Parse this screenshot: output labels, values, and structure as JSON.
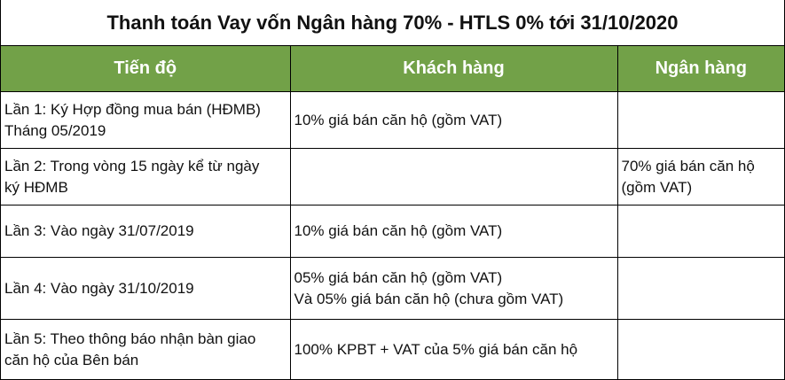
{
  "title": "Thanh toán Vay vốn Ngân hàng 70% - HTLS 0% tới 31/10/2020",
  "columns": [
    "Tiến độ",
    "Khách hàng",
    "Ngân hàng"
  ],
  "rows": [
    {
      "progress": [
        "Lần 1: Ký Hợp đồng mua bán (HĐMB)",
        "Tháng 05/2019"
      ],
      "customer": [
        "10% giá bán căn hộ (gồm VAT)"
      ],
      "bank": []
    },
    {
      "progress": [
        "Lần 2: Trong vòng 15 ngày kể từ ngày",
        "ký HĐMB"
      ],
      "customer": [],
      "bank": [
        "70% giá bán căn hộ",
        "(gồm VAT)"
      ]
    },
    {
      "progress": [
        "Lần 3: Vào ngày 31/07/2019"
      ],
      "customer": [
        "10% giá bán căn hộ (gồm VAT)"
      ],
      "bank": []
    },
    {
      "progress": [
        "Lần 4: Vào ngày 31/10/2019"
      ],
      "customer": [
        "05% giá bán căn hộ (gồm VAT)",
        "Và 05% giá bán căn hộ (chưa gồm VAT)"
      ],
      "bank": []
    },
    {
      "progress": [
        "Lần 5: Theo thông báo nhận bàn giao",
        "căn hộ của Bên bán"
      ],
      "customer": [
        "100% KPBT + VAT của 5% giá bán căn hộ"
      ],
      "bank": []
    }
  ],
  "colors": {
    "header_background": "#72a148",
    "header_text": "#ffffff",
    "border": "#000000"
  }
}
